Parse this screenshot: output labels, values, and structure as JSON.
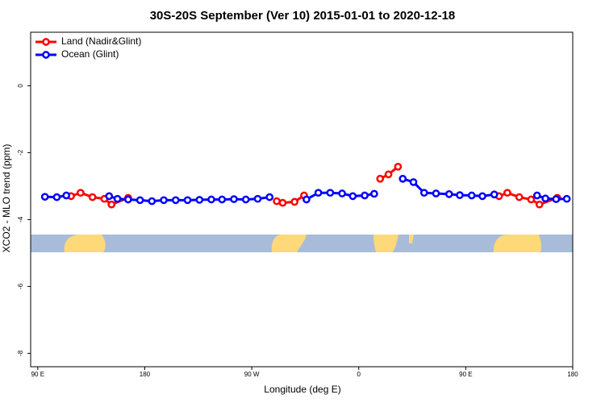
{
  "chart_data": {
    "type": "line",
    "title": "30S-20S September (Ver 10)   2015-01-01 to 2020-12-18",
    "x_label": "Longitude (deg E)",
    "y_label": "XCO2 - MLO trend (ppm)",
    "xlim": [
      84,
      540
    ],
    "ylim": [
      -8.4,
      1.6
    ],
    "xticks": [
      {
        "value": 90,
        "label": "90 E"
      },
      180,
      {
        "value": 270,
        "label": "90 W"
      },
      {
        "value": 360,
        "label": "0"
      },
      {
        "value": 450,
        "label": "90 E"
      },
      {
        "value": 540,
        "label": "180"
      }
    ],
    "yticks": [
      0,
      -2,
      -4,
      -6,
      -8
    ],
    "legend": "top-left",
    "series": [
      {
        "name": "Land (Nadir&Glint)",
        "color": "#ff0000",
        "x": [
          118,
          126,
          136,
          146,
          152,
          166,
          230,
          291,
          296,
          306,
          314,
          346,
          378,
          385,
          393,
          435,
          478,
          485,
          495,
          505,
          512,
          527
        ],
        "values": [
          -3.3,
          -3.2,
          -3.33,
          -3.38,
          -3.55,
          -3.35,
          null,
          -3.45,
          -3.5,
          -3.47,
          -3.28,
          null,
          -2.78,
          -2.65,
          -2.42,
          null,
          -3.3,
          -3.2,
          -3.33,
          -3.4,
          -3.55,
          -3.35
        ]
      },
      {
        "name": "Ocean (Glint)",
        "color": "#0000ff",
        "x": [
          96,
          106,
          114,
          132,
          150,
          157,
          166,
          176,
          186,
          196,
          206,
          216,
          226,
          236,
          245,
          255,
          265,
          275,
          285,
          300,
          316,
          326,
          336,
          346,
          355,
          365,
          373,
          385,
          397,
          406,
          415,
          425,
          436,
          445,
          455,
          464,
          474,
          492,
          510,
          517,
          526,
          535
        ],
        "values": [
          -3.32,
          -3.33,
          -3.28,
          null,
          -3.3,
          -3.38,
          -3.4,
          -3.42,
          -3.45,
          -3.42,
          -3.42,
          -3.42,
          -3.41,
          -3.4,
          -3.4,
          -3.39,
          -3.4,
          -3.38,
          -3.33,
          null,
          -3.4,
          -3.2,
          -3.2,
          -3.22,
          -3.3,
          -3.28,
          -3.23,
          null,
          -2.78,
          -2.88,
          -3.2,
          -3.22,
          -3.24,
          -3.27,
          -3.28,
          -3.3,
          -3.25,
          null,
          -3.28,
          -3.37,
          -3.39,
          -3.38
        ]
      }
    ]
  }
}
